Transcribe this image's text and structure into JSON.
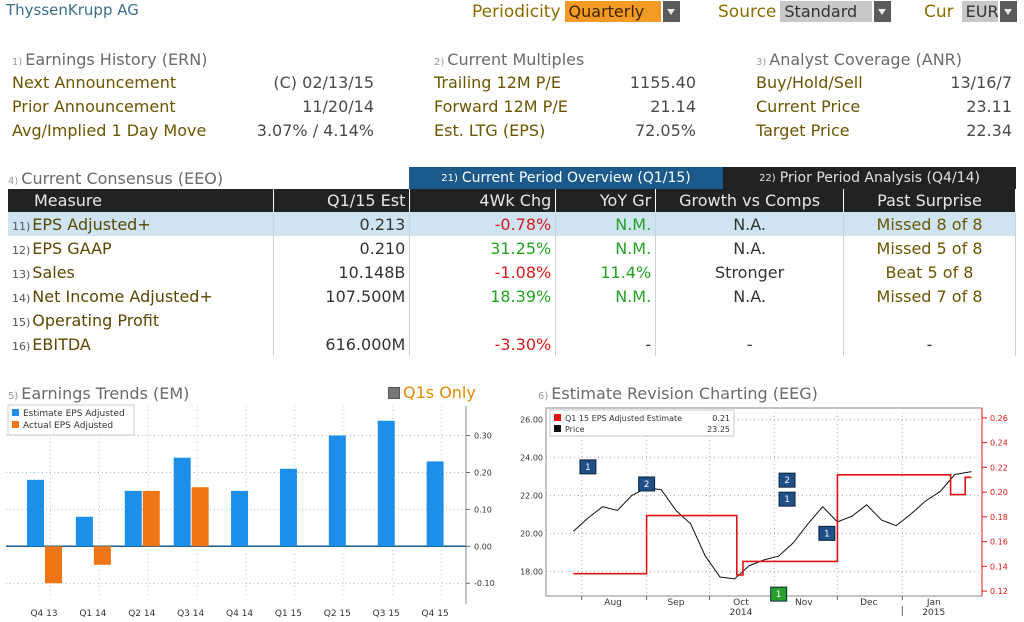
{
  "header": {
    "company": "ThyssenKrupp AG",
    "periodicity_label": "Periodicity",
    "periodicity_value": "Quarterly",
    "source_label": "Source",
    "source_value": "Standard",
    "cur_label": "Cur",
    "cur_value": "EUR"
  },
  "earnings_history": {
    "num": "1)",
    "title": "Earnings History (ERN)",
    "rows": [
      {
        "label": "Next Announcement",
        "value": "(C)  02/13/15"
      },
      {
        "label": "Prior Announcement",
        "value": "11/20/14"
      },
      {
        "label": "Avg/Implied 1 Day Move",
        "value": "3.07% / 4.14%"
      }
    ]
  },
  "current_multiples": {
    "num": "2)",
    "title": "Current Multiples",
    "rows": [
      {
        "label": "Trailing 12M P/E",
        "value": "1155.40"
      },
      {
        "label": "Forward 12M P/E",
        "value": "21.14"
      },
      {
        "label": "Est. LTG (EPS)",
        "value": "72.05%"
      }
    ]
  },
  "analyst_coverage": {
    "num": "3)",
    "title": "Analyst Coverage (ANR)",
    "rows": [
      {
        "label": "Buy/Hold/Sell",
        "value": "13/16/7"
      },
      {
        "label": "Current Price",
        "value": "23.11"
      },
      {
        "label": "Target Price",
        "value": "22.34"
      }
    ]
  },
  "consensus": {
    "num": "4)",
    "title": "Current Consensus (EEO)",
    "tabs": [
      {
        "num": "21)",
        "label": "Current Period Overview (Q1/15)"
      },
      {
        "num": "22)",
        "label": "Prior Period Analysis (Q4/14)"
      }
    ],
    "columns": [
      "Measure",
      "Q1/15 Est",
      "4Wk Chg",
      "YoY Gr",
      "Growth vs Comps",
      "Past Surprise"
    ],
    "rows": [
      {
        "num": "11)",
        "measure": "EPS Adjusted+",
        "est": "0.213",
        "chg": "-0.78%",
        "yoy": "N.M.",
        "comps": "N.A.",
        "surprise": "Missed 8 of 8"
      },
      {
        "num": "12)",
        "measure": "EPS GAAP",
        "est": "0.210",
        "chg": "31.25%",
        "yoy": "N.M.",
        "comps": "N.A.",
        "surprise": "Missed 5 of 8"
      },
      {
        "num": "13)",
        "measure": "Sales",
        "est": "10.148B",
        "chg": "-1.08%",
        "yoy": "11.4%",
        "comps": "Stronger",
        "surprise": "Beat 5 of 8"
      },
      {
        "num": "14)",
        "measure": "Net Income Adjusted+",
        "est": "107.500M",
        "chg": "18.39%",
        "yoy": "N.M.",
        "comps": "N.A.",
        "surprise": "Missed 7 of 8"
      },
      {
        "num": "15)",
        "measure": "Operating Profit",
        "est": "",
        "chg": "",
        "yoy": "",
        "comps": "",
        "surprise": ""
      },
      {
        "num": "16)",
        "measure": "EBITDA",
        "est": "616.000M",
        "chg": "-3.30%",
        "yoy": "-",
        "comps": "-",
        "surprise": "-"
      }
    ]
  },
  "earnings_trends": {
    "num": "5)",
    "title": "Earnings Trends (EM)",
    "toggle_label": "Q1s Only"
  },
  "estimate_revision": {
    "num": "6)",
    "title": "Estimate Revision Charting (EEG)"
  },
  "colors": {
    "estimate_bar": "#1e8fe8",
    "actual_bar": "#f07514",
    "estimate_line": "#e01414",
    "price_line": "#111111",
    "header_bar": "#222222",
    "tab_active": "#1d5a8c",
    "selected_row": "#cfe4f3"
  },
  "chart_data": [
    {
      "type": "bar",
      "categories": [
        "Q4 13",
        "Q1 14",
        "Q2 14",
        "Q3 14",
        "Q4 14",
        "Q1 15",
        "Q2 15",
        "Q3 15",
        "Q4 15"
      ],
      "series": [
        {
          "name": "Estimate EPS Adjusted",
          "values": [
            0.18,
            0.08,
            0.15,
            0.24,
            0.15,
            0.21,
            0.3,
            0.34,
            0.23
          ]
        },
        {
          "name": "Actual EPS Adjusted",
          "values": [
            -0.1,
            -0.05,
            0.15,
            0.16,
            null,
            null,
            null,
            null,
            null
          ]
        }
      ],
      "y_ticks": [
        "0.30",
        "0.20",
        "0.10",
        "0.00",
        "-0.10"
      ],
      "ylim": [
        -0.14,
        0.38
      ],
      "legend": "top-left",
      "grid": true
    },
    {
      "type": "line",
      "x_ticks": [
        "Aug",
        "Sep",
        "Oct",
        "Nov",
        "Dec",
        "Jan"
      ],
      "x_year_labels": [
        "2014",
        "2015"
      ],
      "left_axis_ticks": [
        "26.00",
        "24.00",
        "22.00",
        "20.00",
        "18.00"
      ],
      "right_axis_ticks": [
        "0.26",
        "0.24",
        "0.22",
        "0.20",
        "0.18",
        "0.16",
        "0.14",
        "0.12"
      ],
      "left_ylim": [
        16.7,
        26.6
      ],
      "right_ylim": [
        0.116,
        0.268
      ],
      "legend_entries": [
        {
          "label": "Q1 15 EPS Adjusted Estimate",
          "value": "0.21"
        },
        {
          "label": "Price",
          "value": "23.25"
        }
      ],
      "series": [
        {
          "name": "Q1 15 EPS Adjusted Estimate",
          "axis": "right",
          "step": true,
          "x": [
            "2014-07-28",
            "2014-09-01",
            "2014-09-01",
            "2014-10-14",
            "2014-10-14",
            "2014-10-17",
            "2014-10-17",
            "2014-12-01",
            "2014-12-01",
            "2015-01-24",
            "2015-01-24",
            "2015-01-31",
            "2015-01-31",
            "2015-02-03"
          ],
          "y": [
            0.134,
            0.134,
            0.181,
            0.181,
            0.133,
            0.133,
            0.144,
            0.144,
            0.214,
            0.214,
            0.198,
            0.198,
            0.212,
            0.212
          ]
        },
        {
          "name": "Price",
          "axis": "left",
          "x": [
            "2014-07-28",
            "2014-08-04",
            "2014-08-11",
            "2014-08-18",
            "2014-08-25",
            "2014-09-01",
            "2014-09-08",
            "2014-09-15",
            "2014-09-22",
            "2014-09-29",
            "2014-10-06",
            "2014-10-13",
            "2014-10-20",
            "2014-10-27",
            "2014-11-03",
            "2014-11-10",
            "2014-11-17",
            "2014-11-24",
            "2014-12-01",
            "2014-12-08",
            "2014-12-15",
            "2014-12-22",
            "2014-12-29",
            "2015-01-05",
            "2015-01-12",
            "2015-01-19",
            "2015-01-26",
            "2015-02-03"
          ],
          "y": [
            20.1,
            20.8,
            21.4,
            21.2,
            22.0,
            22.4,
            22.3,
            21.2,
            20.5,
            18.8,
            17.7,
            17.6,
            18.3,
            18.6,
            18.8,
            19.5,
            20.5,
            21.4,
            20.6,
            20.9,
            21.5,
            20.7,
            20.4,
            21.0,
            21.7,
            22.2,
            23.1,
            23.25
          ]
        }
      ],
      "annotations": [
        {
          "date": "2014-08-04",
          "label": "1"
        },
        {
          "date": "2014-09-01",
          "label": "2"
        },
        {
          "date": "2014-11-07",
          "label": "2"
        },
        {
          "date": "2014-11-07",
          "label": "1"
        },
        {
          "date": "2014-11-03",
          "label": "1"
        },
        {
          "date": "2014-11-26",
          "label": "1"
        }
      ]
    }
  ]
}
